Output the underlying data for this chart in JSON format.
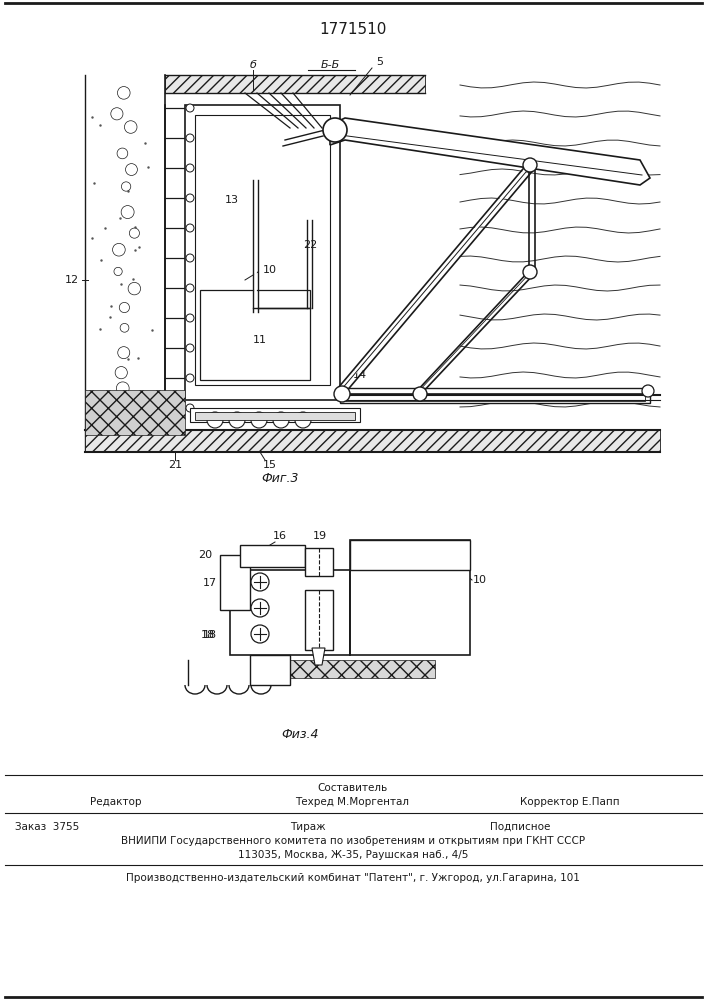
{
  "patent_number": "1771510",
  "fig3_label": "Фиг.3",
  "fig4_label": "Физ.4",
  "section_label": "Б-Б",
  "footer": {
    "sostavitel_label": "Составитель",
    "tehred_name": "Техред М.Моргентал",
    "korrektor": "Корректор Е.Папп",
    "redaktor": "Редактор",
    "zakaz": "Заказ  3755",
    "tirazh": "Тираж",
    "podpisnoe": "Подписное",
    "vniiipi1": "ВНИИПИ Государственного комитета по изобретениям и открытиям при ГКНТ СССР",
    "vniiipi2": "113035, Москва, Ж-35, Раушская наб., 4/5",
    "proizv": "Производственно-издательский комбинат \"Патент\", г. Ужгород, ул.Гагарина, 101"
  },
  "bg_color": "#ffffff",
  "lc": "#1a1a1a"
}
